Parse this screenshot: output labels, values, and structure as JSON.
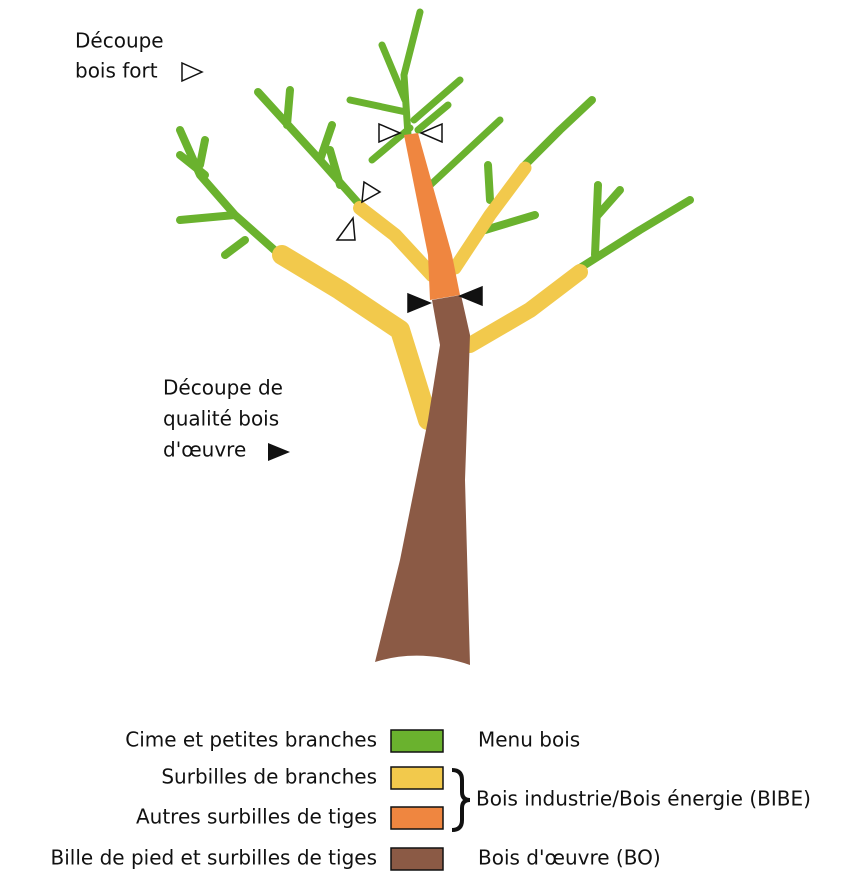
{
  "annotations": {
    "cut_strong": [
      "Découpe",
      "bois fort"
    ],
    "cut_quality": [
      "Découpe de",
      "qualité bois",
      "d'œuvre"
    ]
  },
  "legend": {
    "items": [
      {
        "label": "Cime et petites branches",
        "color": "#6ab22e"
      },
      {
        "label": "Surbilles de branches",
        "color": "#f2c94c"
      },
      {
        "label": "Autres surbilles de tiges",
        "color": "#ef8640"
      },
      {
        "label": "Bille de pied et surbilles de tiges",
        "color": "#8b5a45"
      }
    ],
    "groups": [
      "Menu bois",
      "Bois industrie/Bois énergie (BIBE)",
      "Bois d'œuvre (BO)"
    ]
  }
}
